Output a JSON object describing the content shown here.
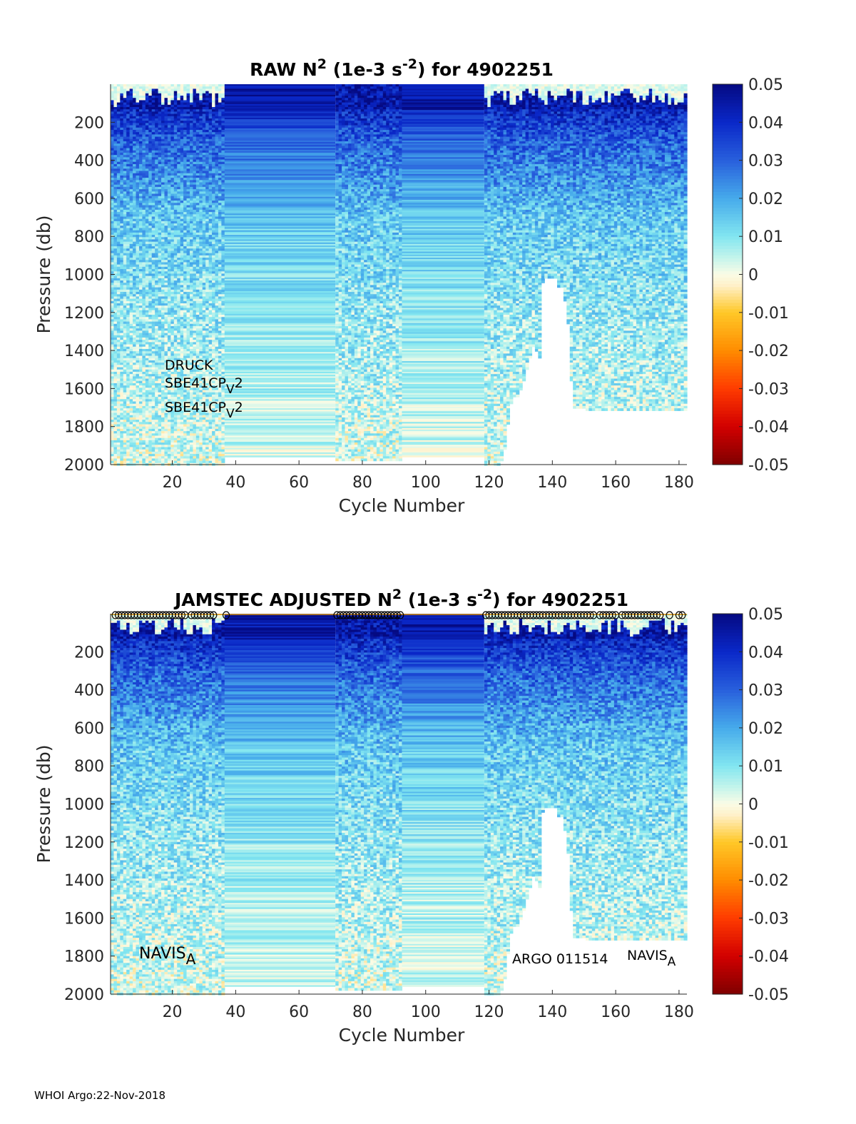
{
  "footer": "WHOI Argo:22-Nov-2018",
  "chart_data": [
    {
      "type": "heatmap",
      "title": {
        "main": "RAW N",
        "sup1": "2",
        "mid": " (1e-3 s",
        "sup2": "-2",
        "end": ") for 4902251"
      },
      "xlabel": "Cycle Number",
      "ylabel": "Pressure (db)",
      "xlim": [
        1,
        182
      ],
      "ylim": [
        0,
        2000
      ],
      "xticks": [
        20,
        40,
        60,
        80,
        100,
        120,
        140,
        160,
        180
      ],
      "yticks": [
        200,
        400,
        600,
        800,
        1000,
        1200,
        1400,
        1600,
        1800,
        2000
      ],
      "colorbar": {
        "min": -0.05,
        "max": 0.05,
        "ticks": [
          "0.05",
          "0.04",
          "0.03",
          "0.02",
          "0.01",
          "0",
          "-0.01",
          "-0.02",
          "-0.03",
          "-0.04",
          "-0.05"
        ]
      },
      "blocks": [
        {
          "start": 1,
          "end": 36,
          "kind": "noisy",
          "surface_band": true
        },
        {
          "start": 37,
          "end": 71,
          "kind": "striped",
          "max_pressure": 1960
        },
        {
          "start": 72,
          "end": 92,
          "kind": "noisy",
          "max_pressure": 1970
        },
        {
          "start": 93,
          "end": 118,
          "kind": "striped",
          "max_pressure": 1960
        },
        {
          "start": 119,
          "end": 182,
          "kind": "noisy",
          "surface_band": true
        }
      ],
      "missing_region": {
        "cycles": [
          124,
          125,
          126,
          127,
          128,
          129,
          130,
          131,
          132,
          133,
          134,
          135,
          136,
          137,
          138,
          139,
          140,
          141,
          142,
          143,
          144,
          145,
          146,
          147,
          148,
          149,
          150
        ],
        "max_pressure": [
          1980,
          1920,
          1780,
          1680,
          1640,
          1640,
          1600,
          1560,
          1500,
          1440,
          1380,
          1400,
          1440,
          1040,
          1010,
          1010,
          1010,
          1010,
          1060,
          1060,
          1140,
          1260,
          1560,
          1700,
          1700,
          1700,
          1700
        ],
        "deep_limit_after": 1710
      },
      "annotations": [
        {
          "text": "DRUCK"
        },
        {
          "text": "SBE41CP",
          "sub": "V",
          "after": "2"
        },
        {
          "text": "SBE41CP",
          "sub": "V",
          "after": "2"
        }
      ]
    },
    {
      "type": "heatmap",
      "title": {
        "main": "JAMSTEC  ADJUSTED N",
        "sup1": "2",
        "mid": " (1e-3 s",
        "sup2": "-2",
        "end": ") for 4902251"
      },
      "xlabel": "Cycle Number",
      "ylabel": "Pressure (db)",
      "xlim": [
        1,
        182
      ],
      "ylim": [
        0,
        2000
      ],
      "xticks": [
        20,
        40,
        60,
        80,
        100,
        120,
        140,
        160,
        180
      ],
      "yticks": [
        200,
        400,
        600,
        800,
        1000,
        1200,
        1400,
        1600,
        1800,
        2000
      ],
      "colorbar": {
        "min": -0.05,
        "max": 0.05,
        "ticks": [
          "0.05",
          "0.04",
          "0.03",
          "0.02",
          "0.01",
          "0",
          "-0.01",
          "-0.02",
          "-0.03",
          "-0.04",
          "-0.05"
        ]
      },
      "blocks": [
        {
          "start": 1,
          "end": 36,
          "kind": "noisy",
          "surface_band": true
        },
        {
          "start": 37,
          "end": 71,
          "kind": "striped",
          "max_pressure": 1960
        },
        {
          "start": 72,
          "end": 92,
          "kind": "noisy",
          "max_pressure": 1970
        },
        {
          "start": 93,
          "end": 118,
          "kind": "striped",
          "max_pressure": 1960
        },
        {
          "start": 119,
          "end": 182,
          "kind": "noisy",
          "surface_band": true
        }
      ],
      "missing_region": {
        "cycles": [
          124,
          125,
          126,
          127,
          128,
          129,
          130,
          131,
          132,
          133,
          134,
          135,
          136,
          137,
          138,
          139,
          140,
          141,
          142,
          143,
          144,
          145,
          146,
          147,
          148,
          149,
          150
        ],
        "max_pressure": [
          1980,
          1920,
          1780,
          1680,
          1640,
          1640,
          1600,
          1560,
          1500,
          1440,
          1380,
          1400,
          1440,
          1040,
          1010,
          1010,
          1010,
          1010,
          1060,
          1060,
          1140,
          1260,
          1560,
          1700,
          1700,
          1700,
          1700
        ],
        "deep_limit_after": 1710
      },
      "flag_markers": {
        "marker": "o",
        "pressure": 0,
        "cycles": [
          2,
          3,
          4,
          5,
          6,
          7,
          8,
          9,
          10,
          11,
          12,
          13,
          14,
          15,
          16,
          17,
          18,
          19,
          20,
          21,
          22,
          23,
          24,
          26,
          27,
          28,
          29,
          30,
          31,
          32,
          33,
          37,
          72,
          73,
          74,
          75,
          76,
          77,
          78,
          79,
          80,
          81,
          82,
          83,
          84,
          85,
          86,
          87,
          88,
          89,
          90,
          91,
          92,
          119,
          120,
          121,
          122,
          123,
          124,
          125,
          126,
          127,
          128,
          129,
          130,
          131,
          132,
          133,
          134,
          135,
          136,
          137,
          138,
          139,
          140,
          141,
          142,
          143,
          144,
          145,
          146,
          147,
          148,
          149,
          150,
          151,
          152,
          153,
          155,
          156,
          157,
          158,
          159,
          160,
          162,
          163,
          164,
          165,
          166,
          167,
          168,
          169,
          170,
          171,
          172,
          173,
          174,
          177,
          180,
          181
        ]
      },
      "annotations": [
        {
          "text": "NAVIS",
          "sub": "A",
          "after": ""
        },
        {
          "text": "ARGO 011514"
        },
        {
          "text": "NAVIS",
          "sub": "A",
          "after": ""
        }
      ]
    }
  ]
}
